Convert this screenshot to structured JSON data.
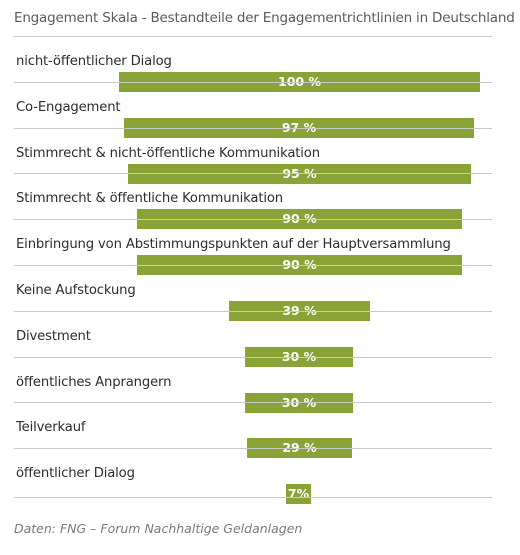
{
  "title": "Engagement Skala - Bestandteile der Engagementrichtlinien in Deutschland",
  "source": "Daten: FNG – Forum Nachhaltige Geldanlagen",
  "colors": {
    "bar": "#8aa336",
    "rule": "#c9c9c9",
    "title": "#5a5a5a"
  },
  "chart_data": {
    "type": "bar",
    "orientation": "horizontal",
    "title": "Engagement Skala - Bestandteile der Engagementrichtlinien in Deutschland",
    "categories": [
      "nicht-öffentlicher Dialog",
      "Co-Engagement",
      "Stimmrecht & nicht-öffentliche Kommunikation",
      "Stimmrecht & öffentliche Kommunikation",
      "Einbringung von Abstimmungspunkten auf der Hauptversammlung",
      "Keine Aufstockung",
      "Divestment",
      "öffentliches Anprangern",
      "Teilverkauf",
      "öffentlicher Dialog"
    ],
    "values": [
      100,
      97,
      95,
      90,
      90,
      39,
      30,
      30,
      29,
      7
    ],
    "value_labels": [
      "100 %",
      "97 %",
      "95 %",
      "90 %",
      "90 %",
      "39 %",
      "30 %",
      "30 %",
      "29 %",
      "7%"
    ],
    "unit": "%",
    "xlim": [
      0,
      100
    ],
    "grid": false,
    "legend": "none"
  }
}
